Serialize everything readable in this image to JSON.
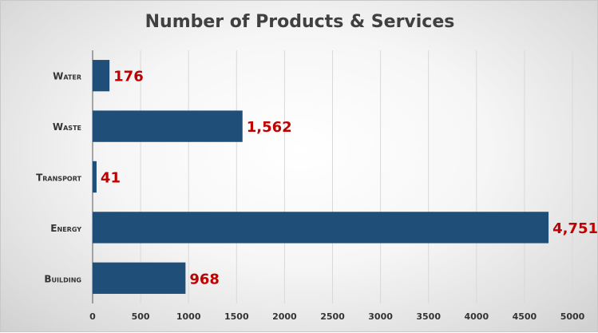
{
  "chart_data": {
    "type": "bar",
    "orientation": "horizontal",
    "title": "Number of Products & Services",
    "categories": [
      "Water",
      "Waste",
      "Transport",
      "Energy",
      "Building"
    ],
    "values": [
      176,
      1562,
      41,
      4751,
      968
    ],
    "data_labels": [
      "176",
      "1,562",
      "41",
      "4,751",
      "968"
    ],
    "x_ticks": [
      0,
      500,
      1000,
      1500,
      2000,
      2500,
      3000,
      3500,
      4000,
      4500,
      5000
    ],
    "xlim": [
      0,
      5000
    ],
    "xlabel": "",
    "ylabel": "",
    "grid": "vertical",
    "legend": "none",
    "colors": {
      "bar": "#1f4e79",
      "data_label": "#c00000",
      "grid": "#d9d9d9",
      "text": "#333333"
    }
  }
}
